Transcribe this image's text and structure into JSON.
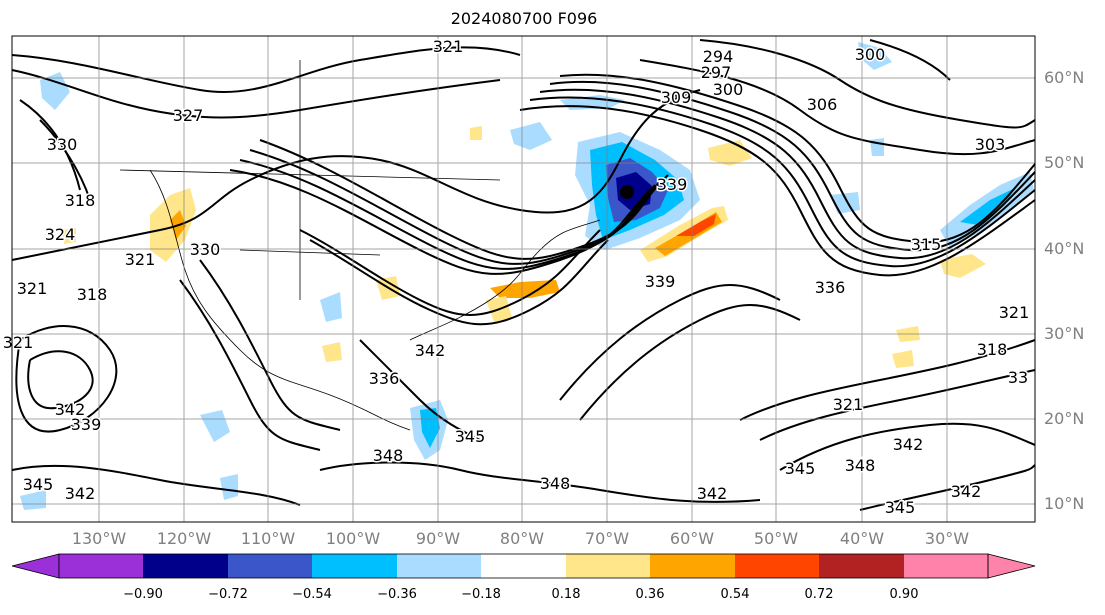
{
  "title": "2024080700 F096",
  "lat_labels": [
    "60°N",
    "50°N",
    "40°N",
    "30°N",
    "20°N",
    "10°N"
  ],
  "lon_labels": [
    "130°W",
    "120°W",
    "110°W",
    "100°W",
    "90°W",
    "80°W",
    "70°W",
    "60°W",
    "50°W",
    "40°W",
    "30°W"
  ],
  "colorbar": {
    "ticks": [
      "−0.90",
      "−0.72",
      "−0.54",
      "−0.36",
      "−0.18",
      "0.18",
      "0.36",
      "0.54",
      "0.72",
      "0.90"
    ],
    "colors": [
      "#9b30d9",
      "#00008b",
      "#3a56c9",
      "#00bfff",
      "#aadcff",
      "#ffffff",
      "#ffe68a",
      "#ffa500",
      "#ff4500",
      "#b22222",
      "#ff82ab"
    ],
    "extend": "both"
  },
  "contour_labels": [
    {
      "text": "321",
      "pos": [
        448,
        52
      ]
    },
    {
      "text": "327",
      "pos": [
        188,
        121
      ]
    },
    {
      "text": "330",
      "pos": [
        62,
        150
      ]
    },
    {
      "text": "318",
      "pos": [
        80,
        206
      ]
    },
    {
      "text": "324",
      "pos": [
        60,
        240
      ]
    },
    {
      "text": "321",
      "pos": [
        140,
        265
      ]
    },
    {
      "text": "330",
      "pos": [
        205,
        255
      ]
    },
    {
      "text": "321",
      "pos": [
        32,
        294
      ]
    },
    {
      "text": "318",
      "pos": [
        92,
        300
      ]
    },
    {
      "text": "321",
      "pos": [
        18,
        348
      ]
    },
    {
      "text": "342",
      "pos": [
        430,
        356
      ]
    },
    {
      "text": "336",
      "pos": [
        384,
        384
      ]
    },
    {
      "text": "342",
      "pos": [
        70,
        415
      ]
    },
    {
      "text": "339",
      "pos": [
        86,
        430
      ]
    },
    {
      "text": "345",
      "pos": [
        470,
        442
      ]
    },
    {
      "text": "348",
      "pos": [
        388,
        461
      ]
    },
    {
      "text": "345",
      "pos": [
        38,
        490
      ]
    },
    {
      "text": "342",
      "pos": [
        80,
        499
      ]
    },
    {
      "text": "348",
      "pos": [
        555,
        489
      ]
    },
    {
      "text": "342",
      "pos": [
        712,
        499
      ]
    },
    {
      "text": "345",
      "pos": [
        900,
        513
      ]
    },
    {
      "text": "342",
      "pos": [
        966,
        497
      ]
    },
    {
      "text": "345",
      "pos": [
        800,
        474
      ]
    },
    {
      "text": "348",
      "pos": [
        860,
        471
      ]
    },
    {
      "text": "342",
      "pos": [
        908,
        450
      ]
    },
    {
      "text": "321",
      "pos": [
        848,
        410
      ]
    },
    {
      "text": "339",
      "pos": [
        660,
        287
      ]
    },
    {
      "text": "336",
      "pos": [
        830,
        293
      ]
    },
    {
      "text": "315",
      "pos": [
        926,
        250
      ]
    },
    {
      "text": "303",
      "pos": [
        990,
        150
      ]
    },
    {
      "text": "300",
      "pos": [
        870,
        60
      ]
    },
    {
      "text": "306",
      "pos": [
        822,
        110
      ]
    },
    {
      "text": "294",
      "pos": [
        718,
        62
      ]
    },
    {
      "text": "297",
      "pos": [
        716,
        78
      ]
    },
    {
      "text": "300",
      "pos": [
        728,
        95
      ]
    },
    {
      "text": "309",
      "pos": [
        676,
        103
      ]
    },
    {
      "text": "339",
      "pos": [
        672,
        190
      ]
    },
    {
      "text": "321",
      "pos": [
        1014,
        318
      ]
    },
    {
      "text": "318",
      "pos": [
        992,
        355
      ]
    },
    {
      "text": "33",
      "pos": [
        1018,
        383
      ]
    }
  ]
}
